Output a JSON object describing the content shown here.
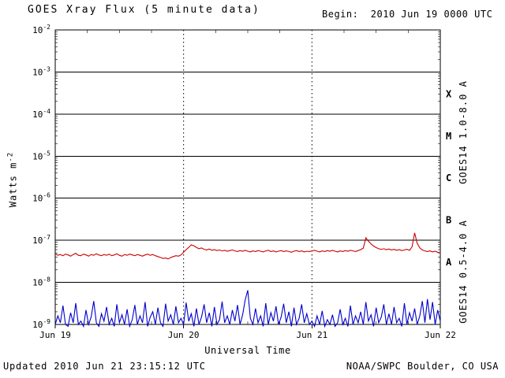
{
  "header": {
    "title": "GOES Xray Flux (5 minute data)",
    "begin": "Begin:  2010 Jun 19 0000 UTC"
  },
  "footer": {
    "updated": "Updated 2010 Jun 21 23:15:12 UTC",
    "source": "NOAA/SWPC Boulder, CO USA"
  },
  "chart_data": {
    "type": "line",
    "title": "GOES Xray Flux (5 minute data)",
    "xlabel": "Universal Time",
    "ylabel": "Watts m^-2",
    "ylabel_base": "Watts m",
    "ylabel_exp": "-2",
    "x_unit": "days since 2010 Jun 19 0000 UTC",
    "xlim": [
      0,
      3
    ],
    "ylim": [
      1e-09,
      0.01
    ],
    "y_scale": "log",
    "y_tick_exponents": [
      -2,
      -3,
      -4,
      -5,
      -6,
      -7,
      -8,
      -9
    ],
    "x_ticks": [
      {
        "x": 0,
        "label": "Jun 19"
      },
      {
        "x": 1,
        "label": "Jun 20"
      },
      {
        "x": 2,
        "label": "Jun 21"
      },
      {
        "x": 3,
        "label": "Jun 22"
      }
    ],
    "x_minor_step_days": 0.25,
    "day_lines": [
      1,
      2
    ],
    "grid": {
      "horizontal": "solid",
      "day_lines": "dotted"
    },
    "legend_position": "right-rotated",
    "flare_classes": [
      {
        "label": "X",
        "level": 0.0003
      },
      {
        "label": "M",
        "level": 3e-05
      },
      {
        "label": "C",
        "level": 3e-06
      },
      {
        "label": "B",
        "level": 3e-07
      },
      {
        "label": "A",
        "level": 3e-08
      }
    ],
    "series": [
      {
        "name": "GOES14 1.0-8.0 A",
        "color": "#cc0000",
        "x_start": 0,
        "x_step": 0.02,
        "values": [
          4.8e-08,
          4.4e-08,
          4.6e-08,
          4.3e-08,
          4.7e-08,
          4.5e-08,
          4.2e-08,
          4.6e-08,
          4.9e-08,
          4.4e-08,
          4.3e-08,
          4.7e-08,
          4.5e-08,
          4.2e-08,
          4.6e-08,
          4.4e-08,
          4.8e-08,
          4.5e-08,
          4.3e-08,
          4.6e-08,
          4.4e-08,
          4.7e-08,
          4.3e-08,
          4.5e-08,
          4.8e-08,
          4.4e-08,
          4.2e-08,
          4.6e-08,
          4.4e-08,
          4.7e-08,
          4.5e-08,
          4.3e-08,
          4.6e-08,
          4.4e-08,
          4.2e-08,
          4.5e-08,
          4.7e-08,
          4.4e-08,
          4.6e-08,
          4.3e-08,
          4.1e-08,
          3.9e-08,
          3.7e-08,
          3.8e-08,
          3.6e-08,
          3.9e-08,
          4.1e-08,
          4.3e-08,
          4.2e-08,
          4.5e-08,
          5.2e-08,
          6e-08,
          6.8e-08,
          7.8e-08,
          7.4e-08,
          6.8e-08,
          6.3e-08,
          6.6e-08,
          6.1e-08,
          5.9e-08,
          6.2e-08,
          5.8e-08,
          6e-08,
          5.7e-08,
          5.9e-08,
          5.6e-08,
          5.8e-08,
          5.5e-08,
          5.7e-08,
          5.9e-08,
          5.6e-08,
          5.4e-08,
          5.7e-08,
          5.5e-08,
          5.8e-08,
          5.5e-08,
          5.3e-08,
          5.6e-08,
          5.4e-08,
          5.7e-08,
          5.5e-08,
          5.3e-08,
          5.6e-08,
          5.8e-08,
          5.4e-08,
          5.6e-08,
          5.3e-08,
          5.5e-08,
          5.7e-08,
          5.4e-08,
          5.6e-08,
          5.4e-08,
          5.2e-08,
          5.5e-08,
          5.7e-08,
          5.4e-08,
          5.6e-08,
          5.3e-08,
          5.5e-08,
          5.4e-08,
          5.6e-08,
          5.8e-08,
          5.5e-08,
          5.3e-08,
          5.6e-08,
          5.4e-08,
          5.7e-08,
          5.5e-08,
          5.8e-08,
          5.5e-08,
          5.3e-08,
          5.6e-08,
          5.4e-08,
          5.7e-08,
          5.5e-08,
          5.8e-08,
          5.6e-08,
          5.4e-08,
          5.7e-08,
          6e-08,
          6.5e-08,
          1.15e-07,
          9.5e-08,
          8.2e-08,
          7.3e-08,
          6.7e-08,
          6.3e-08,
          6.1e-08,
          6.3e-08,
          6e-08,
          6.2e-08,
          5.9e-08,
          6.1e-08,
          5.8e-08,
          6e-08,
          5.7e-08,
          5.9e-08,
          6.1e-08,
          5.8e-08,
          7e-08,
          1.5e-07,
          8.5e-08,
          6.6e-08,
          5.9e-08,
          5.6e-08,
          5.4e-08,
          5.6e-08,
          5.3e-08,
          5.5e-08,
          5.2e-08,
          5e-08
        ]
      },
      {
        "name": "GOES14 0.5-4.0 A",
        "color": "#0000cc",
        "x_start": 0,
        "x_step": 0.02,
        "values": [
          1e-09,
          1.6e-09,
          1.1e-09,
          2.8e-09,
          1e-09,
          9e-10,
          1.9e-09,
          1.1e-09,
          3.2e-09,
          1e-09,
          1.2e-09,
          9e-10,
          2.2e-09,
          1e-09,
          1.5e-09,
          3.6e-09,
          1.1e-09,
          9e-10,
          1.8e-09,
          1.2e-09,
          2.6e-09,
          1e-09,
          1.4e-09,
          9e-10,
          3e-09,
          1.1e-09,
          1.7e-09,
          1e-09,
          2.3e-09,
          9e-10,
          1.3e-09,
          2.9e-09,
          1e-09,
          1.6e-09,
          1.1e-09,
          3.4e-09,
          9e-10,
          1.5e-09,
          2e-09,
          1e-09,
          2.5e-09,
          1.1e-09,
          9e-10,
          3.1e-09,
          1.2e-09,
          1.7e-09,
          1e-09,
          2.7e-09,
          1.1e-09,
          1.4e-09,
          1e-09,
          3.3e-09,
          1.2e-09,
          1.8e-09,
          9e-10,
          2.4e-09,
          1e-09,
          1.5e-09,
          3e-09,
          1.1e-09,
          1.9e-09,
          9e-10,
          2.6e-09,
          1e-09,
          1.3e-09,
          3.5e-09,
          1.1e-09,
          1.6e-09,
          1e-09,
          2.2e-09,
          1.2e-09,
          2.9e-09,
          1e-09,
          1.7e-09,
          3.8e-09,
          6.5e-09,
          1.4e-09,
          1e-09,
          2.4e-09,
          1.1e-09,
          1.6e-09,
          9e-10,
          3.2e-09,
          1e-09,
          1.9e-09,
          1.2e-09,
          2.7e-09,
          1e-09,
          1.5e-09,
          3.1e-09,
          1.1e-09,
          2e-09,
          9e-10,
          2.5e-09,
          1e-09,
          1.4e-09,
          3e-09,
          1.1e-09,
          1.8e-09,
          1e-09,
          1.2e-09,
          9e-10,
          1.6e-09,
          1e-09,
          2.1e-09,
          9e-10,
          1.3e-09,
          1e-09,
          1.7e-09,
          9e-10,
          1.1e-09,
          2.3e-09,
          1e-09,
          1.4e-09,
          9e-10,
          2.8e-09,
          1e-09,
          1.6e-09,
          1.1e-09,
          2e-09,
          1e-09,
          3.4e-09,
          1.2e-09,
          1.7e-09,
          9e-10,
          2.5e-09,
          1.1e-09,
          1.5e-09,
          3e-09,
          1e-09,
          1.8e-09,
          1e-09,
          2.6e-09,
          1.1e-09,
          1.4e-09,
          9e-10,
          3.2e-09,
          1e-09,
          1.9e-09,
          1.2e-09,
          2.4e-09,
          1e-09,
          1.6e-09,
          3.6e-09,
          1.1e-09,
          4e-09,
          1.3e-09,
          3.4e-09,
          1e-09,
          2.2e-09,
          1.2e-09
        ]
      }
    ]
  }
}
